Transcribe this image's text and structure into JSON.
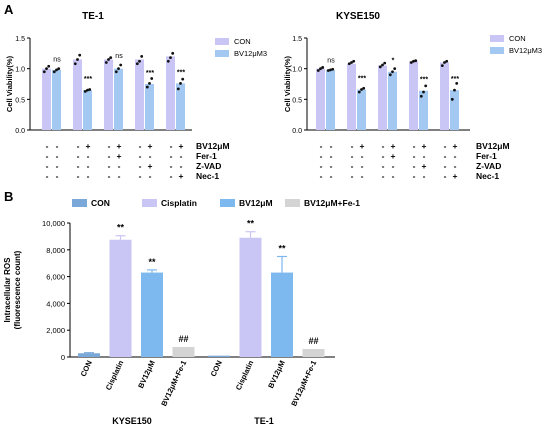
{
  "panel_labels": [
    "A",
    "B"
  ],
  "chart_data": [
    {
      "type": "bar",
      "title": "TE-1",
      "ylabel": "Cell Viability(%)",
      "ylim": [
        0,
        1.5
      ],
      "yticks": [
        "0.0",
        "0.5",
        "1.0",
        "1.5"
      ],
      "groups": 5,
      "series": [
        {
          "name": "CON",
          "color": "#c9c5f5",
          "values": [
            1.0,
            1.15,
            1.15,
            1.15,
            1.2
          ],
          "points": [
            [
              0.95,
              1.0,
              1.04
            ],
            [
              1.08,
              1.15,
              1.22
            ],
            [
              1.1,
              1.15,
              1.18
            ],
            [
              1.08,
              1.12,
              1.2
            ],
            [
              1.12,
              1.18,
              1.25
            ]
          ]
        },
        {
          "name": "BV12μM3",
          "color": "#a3c8f2",
          "values": [
            0.98,
            0.65,
            1.0,
            0.75,
            0.76
          ],
          "points": [
            [
              0.95,
              0.98,
              1.0
            ],
            [
              0.63,
              0.65,
              0.66
            ],
            [
              0.95,
              1.0,
              1.06
            ],
            [
              0.7,
              0.76,
              0.84
            ],
            [
              0.67,
              0.76,
              0.83
            ]
          ]
        }
      ],
      "annotations": [
        "ns",
        "***",
        "ns",
        "***",
        "***"
      ],
      "condition_rows": [
        {
          "label": "BV12μM",
          "signs": [
            "-",
            "-",
            "-",
            "+",
            "-",
            "+",
            "-",
            "+",
            "-",
            "+"
          ]
        },
        {
          "label": "Fer-1",
          "signs": [
            "-",
            "-",
            "-",
            "-",
            "-",
            "+",
            "-",
            "-",
            "-",
            "-"
          ]
        },
        {
          "label": "Z-VAD",
          "signs": [
            "-",
            "-",
            "-",
            "-",
            "-",
            "-",
            "-",
            "+",
            "-",
            "-"
          ]
        },
        {
          "label": "Nec-1",
          "signs": [
            "-",
            "-",
            "-",
            "-",
            "-",
            "-",
            "-",
            "-",
            "-",
            "+"
          ]
        }
      ]
    },
    {
      "type": "bar",
      "title": "KYSE150",
      "ylabel": "Cell Viability(%)",
      "ylim": [
        0,
        1.5
      ],
      "yticks": [
        "0.0",
        "0.5",
        "1.0",
        "1.5"
      ],
      "groups": 5,
      "series": [
        {
          "name": "CON",
          "color": "#c9c5f5",
          "values": [
            1.0,
            1.08,
            1.05,
            1.12,
            1.1
          ],
          "points": [
            [
              0.97,
              1.0,
              1.02
            ],
            [
              1.08,
              1.1,
              1.12
            ],
            [
              1.03,
              1.06,
              1.09
            ],
            [
              1.1,
              1.12,
              1.13
            ],
            [
              1.05,
              1.1,
              1.12
            ]
          ]
        },
        {
          "name": "BV12μM3",
          "color": "#a3c8f2",
          "values": [
            0.98,
            0.66,
            0.95,
            0.64,
            0.65
          ],
          "points": [
            [
              0.97,
              0.98,
              0.99
            ],
            [
              0.62,
              0.66,
              0.68
            ],
            [
              0.9,
              0.95,
              1.0
            ],
            [
              0.55,
              0.62,
              0.72
            ],
            [
              0.5,
              0.65,
              0.76
            ]
          ]
        }
      ],
      "annotations": [
        "ns",
        "***",
        "*",
        "***",
        "***"
      ],
      "condition_rows": [
        {
          "label": "BV12μM",
          "signs": [
            "-",
            "-",
            "-",
            "+",
            "-",
            "+",
            "-",
            "+",
            "-",
            "+"
          ]
        },
        {
          "label": "Fer-1",
          "signs": [
            "-",
            "-",
            "-",
            "-",
            "-",
            "+",
            "-",
            "-",
            "-",
            "-"
          ]
        },
        {
          "label": "Z-VAD",
          "signs": [
            "-",
            "-",
            "-",
            "-",
            "-",
            "-",
            "-",
            "+",
            "-",
            "-"
          ]
        },
        {
          "label": "Nec-1",
          "signs": [
            "-",
            "-",
            "-",
            "-",
            "-",
            "-",
            "-",
            "-",
            "-",
            "+"
          ]
        }
      ]
    },
    {
      "type": "bar",
      "title": "",
      "ylabel": "Intracellular ROS\n(fluorescence count)",
      "ylim": [
        0,
        10000
      ],
      "yticks": [
        "0",
        "2,000",
        "4,000",
        "6,000",
        "8,000",
        "10,000"
      ],
      "categories": [
        "CON",
        "Cisplatin",
        "BV12μM",
        "BV12μM+Fe-1",
        "CON",
        "Cisplatin",
        "BV12μM",
        "BV12μM+Fe-1"
      ],
      "cell_lines": [
        "KYSE150",
        "TE-1"
      ],
      "values": [
        280,
        8750,
        6300,
        750,
        100,
        8900,
        6300,
        600
      ],
      "errors": [
        40,
        300,
        200,
        0,
        0,
        450,
        1200,
        0
      ],
      "colors": [
        "#7aa8d8",
        "#c9c5f5",
        "#7db8ef",
        "#d4d4d4",
        "#7aa8d8",
        "#c9c5f5",
        "#7db8ef",
        "#d4d4d4"
      ],
      "annotations": [
        "",
        "**",
        "**",
        "##",
        "",
        "**",
        "**",
        "##"
      ],
      "legend": [
        {
          "name": "CON",
          "color": "#7aa8d8"
        },
        {
          "name": "Cisplatin",
          "color": "#c9c5f5"
        },
        {
          "name": "BV12μM",
          "color": "#7db8ef"
        },
        {
          "name": "BV12μM+Fe-1",
          "color": "#d4d4d4"
        }
      ]
    }
  ]
}
